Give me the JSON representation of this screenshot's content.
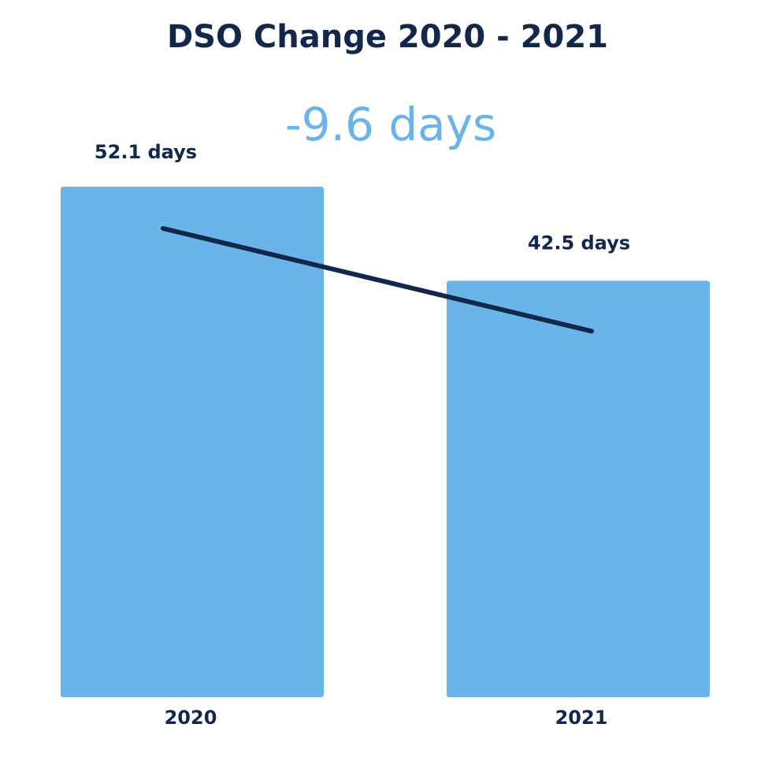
{
  "chart_data": {
    "type": "bar",
    "title": "DSO Change 2020 - 2021",
    "change_label": "-9.6 days",
    "categories": [
      "2020",
      "2021"
    ],
    "values": [
      52.1,
      42.5
    ],
    "data_labels": [
      "52.1 days",
      "42.5 days"
    ],
    "unit": "days",
    "ylim": [
      0,
      52.1
    ],
    "grid": false,
    "legend": "none",
    "trend_line": true
  },
  "colors": {
    "bar": "#6ab4ea",
    "title": "#13274a",
    "delta": "#6ab4ea",
    "label": "#13274a",
    "trend_line": "#13274a",
    "background": "#ffffff"
  }
}
